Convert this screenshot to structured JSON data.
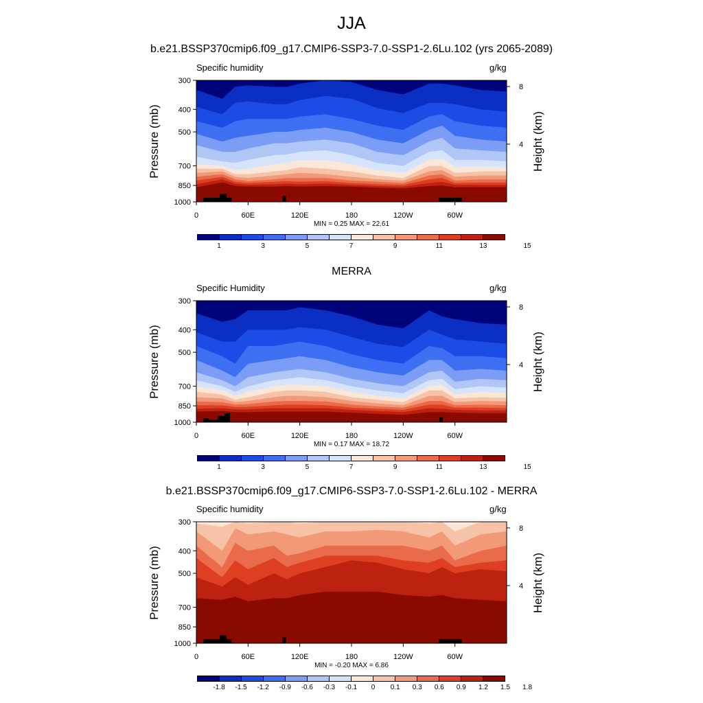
{
  "main_title": "JJA",
  "colors": {
    "seq": [
      "#00037a",
      "#0b2fc2",
      "#1d4be6",
      "#3e6ff2",
      "#7c9df5",
      "#b0c6f7",
      "#d6e4fb",
      "#fbe7d8",
      "#f7c3a8",
      "#f29a78",
      "#ea6b4c",
      "#de3f22",
      "#bd2210",
      "#8b0a00"
    ],
    "diff": [
      "#00037a",
      "#0b2fc2",
      "#1d4be6",
      "#3e6ff2",
      "#7c9df5",
      "#b0c6f7",
      "#d6e4fb",
      "#fbe7d8",
      "#f7c3a8",
      "#f29a78",
      "#ea6b4c",
      "#de3f22",
      "#bd2210",
      "#8b0a00"
    ]
  },
  "chart_data": [
    {
      "type": "heatmap",
      "title": "b.e21.BSSP370cmip6.f09_g17.CMIP6-SSP3-7.0-SSP1-2.6Lu.102 (yrs 2065-2089)",
      "left_label": "Specific humidity",
      "units": "g/kg",
      "xlabel": "",
      "ylabel": "Pressure (mb)",
      "y2label": "Height (km)",
      "x_ticks": [
        "0",
        "60E",
        "120E",
        "180",
        "120W",
        "60W"
      ],
      "x_tick_values": [
        0,
        60,
        120,
        180,
        240,
        300
      ],
      "xlim": [
        0,
        360
      ],
      "y_ticks": [
        "300",
        "400",
        "500",
        "700",
        "850",
        "1000"
      ],
      "y_tick_values": [
        300,
        400,
        500,
        700,
        850,
        1000
      ],
      "ylim": [
        1000,
        300
      ],
      "y2_ticks": [
        "8",
        "4"
      ],
      "y2_tick_values": [
        8,
        4
      ],
      "min_max_text": "MIN =   0.25  MAX =  22.61",
      "colorbar_labels": [
        "1",
        "3",
        "5",
        "7",
        "9",
        "11",
        "13",
        "15"
      ],
      "levels": [
        0,
        1,
        2,
        3,
        4,
        5,
        6,
        7,
        8,
        9,
        10,
        11,
        12,
        13,
        14,
        15
      ],
      "field": "seq",
      "lon": [
        0,
        30,
        45,
        60,
        90,
        105,
        120,
        150,
        180,
        210,
        240,
        270,
        285,
        300,
        330,
        360
      ],
      "tops": [
        [
          330,
          360,
          320,
          315,
          320,
          320,
          310,
          300,
          305,
          330,
          345,
          310,
          310,
          315,
          330,
          335
        ],
        [
          390,
          420,
          375,
          370,
          380,
          380,
          365,
          350,
          360,
          395,
          415,
          375,
          375,
          380,
          400,
          410
        ],
        [
          450,
          480,
          450,
          440,
          440,
          440,
          430,
          420,
          440,
          470,
          490,
          430,
          420,
          450,
          470,
          480
        ],
        [
          510,
          550,
          530,
          520,
          500,
          500,
          490,
          480,
          500,
          540,
          560,
          490,
          470,
          520,
          540,
          550
        ],
        [
          570,
          610,
          610,
          590,
          560,
          560,
          550,
          540,
          560,
          610,
          630,
          550,
          530,
          590,
          600,
          610
        ],
        [
          640,
          670,
          680,
          660,
          630,
          625,
          610,
          600,
          630,
          680,
          700,
          610,
          600,
          660,
          660,
          670
        ],
        [
          690,
          700,
          730,
          720,
          690,
          680,
          660,
          660,
          690,
          730,
          750,
          660,
          650,
          710,
          705,
          710
        ],
        [
          720,
          720,
          760,
          760,
          740,
          730,
          710,
          720,
          740,
          770,
          790,
          700,
          700,
          750,
          740,
          740
        ],
        [
          750,
          740,
          780,
          790,
          770,
          760,
          750,
          760,
          780,
          800,
          810,
          740,
          730,
          780,
          770,
          770
        ],
        [
          780,
          760,
          800,
          815,
          800,
          790,
          790,
          790,
          810,
          820,
          830,
          770,
          760,
          810,
          800,
          800
        ],
        [
          810,
          780,
          820,
          830,
          820,
          815,
          820,
          815,
          830,
          840,
          845,
          800,
          790,
          830,
          825,
          825
        ],
        [
          840,
          800,
          835,
          845,
          840,
          835,
          840,
          835,
          845,
          855,
          860,
          830,
          820,
          845,
          845,
          845
        ],
        [
          865,
          825,
          855,
          860,
          860,
          855,
          860,
          855,
          860,
          870,
          875,
          855,
          850,
          865,
          865,
          865
        ]
      ],
      "base_color_index": 0,
      "topo": [
        {
          "lon0": 8,
          "lon1": 17,
          "p": 960
        },
        {
          "lon0": 17,
          "lon1": 27,
          "p": 960
        },
        {
          "lon0": 27,
          "lon1": 35,
          "p": 925
        },
        {
          "lon0": 35,
          "lon1": 41,
          "p": 960
        },
        {
          "lon0": 100,
          "lon1": 104,
          "p": 945
        },
        {
          "lon0": 281,
          "lon1": 308,
          "p": 960
        }
      ]
    },
    {
      "type": "heatmap",
      "title": "MERRA",
      "left_label": "Specific Humidity",
      "units": "g/kg",
      "xlabel": "",
      "ylabel": "Pressure (mb)",
      "y2label": "Height (km)",
      "x_ticks": [
        "0",
        "60E",
        "120E",
        "180",
        "120W",
        "60W"
      ],
      "x_tick_values": [
        0,
        60,
        120,
        180,
        240,
        300
      ],
      "xlim": [
        0,
        360
      ],
      "y_ticks": [
        "300",
        "400",
        "500",
        "700",
        "850",
        "1000"
      ],
      "y_tick_values": [
        300,
        400,
        500,
        700,
        850,
        1000
      ],
      "ylim": [
        1000,
        300
      ],
      "y2_ticks": [
        "8",
        "4"
      ],
      "y2_tick_values": [
        8,
        4
      ],
      "min_max_text": "MIN =   0.17  MAX =  18.72",
      "colorbar_labels": [
        "1",
        "3",
        "5",
        "7",
        "9",
        "11",
        "13",
        "15"
      ],
      "levels": [
        0,
        1,
        2,
        3,
        4,
        5,
        6,
        7,
        8,
        9,
        10,
        11,
        12,
        13,
        14,
        15
      ],
      "field": "seq",
      "lon": [
        0,
        30,
        45,
        60,
        90,
        105,
        120,
        150,
        180,
        210,
        240,
        270,
        285,
        300,
        330,
        360
      ],
      "tops": [
        [
          340,
          370,
          360,
          330,
          330,
          330,
          320,
          330,
          350,
          380,
          395,
          330,
          350,
          360,
          375,
          380
        ],
        [
          410,
          450,
          450,
          400,
          400,
          400,
          390,
          400,
          430,
          460,
          475,
          400,
          420,
          440,
          450,
          460
        ],
        [
          470,
          520,
          560,
          470,
          470,
          460,
          450,
          470,
          510,
          540,
          560,
          470,
          480,
          520,
          520,
          530
        ],
        [
          540,
          600,
          640,
          560,
          540,
          530,
          520,
          540,
          580,
          610,
          630,
          540,
          540,
          600,
          590,
          600
        ],
        [
          610,
          660,
          700,
          640,
          610,
          600,
          590,
          610,
          650,
          680,
          700,
          610,
          600,
          670,
          650,
          660
        ],
        [
          660,
          700,
          740,
          700,
          660,
          650,
          640,
          660,
          700,
          730,
          750,
          660,
          650,
          720,
          700,
          710
        ],
        [
          700,
          730,
          770,
          740,
          700,
          690,
          690,
          700,
          740,
          770,
          790,
          700,
          690,
          760,
          740,
          750
        ],
        [
          740,
          760,
          800,
          780,
          740,
          730,
          730,
          740,
          780,
          800,
          820,
          730,
          730,
          790,
          780,
          785
        ],
        [
          780,
          790,
          820,
          810,
          780,
          770,
          770,
          780,
          810,
          830,
          845,
          770,
          770,
          820,
          810,
          815
        ],
        [
          815,
          820,
          840,
          835,
          815,
          810,
          810,
          815,
          840,
          855,
          865,
          810,
          810,
          845,
          840,
          845
        ],
        [
          845,
          845,
          860,
          860,
          845,
          840,
          840,
          845,
          865,
          875,
          885,
          840,
          840,
          865,
          865,
          870
        ],
        [
          875,
          870,
          880,
          880,
          870,
          870,
          870,
          870,
          885,
          895,
          905,
          870,
          875,
          885,
          890,
          890
        ],
        [
          900,
          895,
          905,
          905,
          900,
          900,
          900,
          900,
          910,
          920,
          930,
          905,
          905,
          910,
          915,
          915
        ]
      ],
      "base_color_index": 0,
      "topo": [
        {
          "lon0": 8,
          "lon1": 14,
          "p": 960
        },
        {
          "lon0": 14,
          "lon1": 25,
          "p": 975
        },
        {
          "lon0": 25,
          "lon1": 33,
          "p": 940
        },
        {
          "lon0": 33,
          "lon1": 39,
          "p": 915
        },
        {
          "lon0": 282,
          "lon1": 286,
          "p": 955
        }
      ]
    },
    {
      "type": "heatmap",
      "title": "b.e21.BSSP370cmip6.f09_g17.CMIP6-SSP3-7.0-SSP1-2.6Lu.102 - MERRA",
      "left_label": "Specific humidity",
      "units": "g/kg",
      "xlabel": "",
      "ylabel": "Pressure (mb)",
      "y2label": "Height (km)",
      "x_ticks": [
        "0",
        "60E",
        "120E",
        "180",
        "120W",
        "60W"
      ],
      "x_tick_values": [
        0,
        60,
        120,
        180,
        240,
        300
      ],
      "xlim": [
        0,
        360
      ],
      "y_ticks": [
        "300",
        "400",
        "500",
        "700",
        "850",
        "1000"
      ],
      "y_tick_values": [
        300,
        400,
        500,
        700,
        850,
        1000
      ],
      "ylim": [
        1000,
        300
      ],
      "y2_ticks": [
        "8",
        "4"
      ],
      "y2_tick_values": [
        8,
        4
      ],
      "min_max_text": "MIN =  -0.20  MAX =   6.86",
      "colorbar_labels": [
        "-1.8",
        "-1.5",
        "-1.2",
        "-0.9",
        "-0.6",
        "-0.3",
        "-0.1",
        "0",
        "0.1",
        "0.3",
        "0.6",
        "0.9",
        "1.2",
        "1.5",
        "1.8"
      ],
      "levels": [
        -1.8,
        -1.5,
        -1.2,
        -0.9,
        -0.6,
        -0.3,
        -0.1,
        0,
        0.1,
        0.3,
        0.6,
        0.9,
        1.2,
        1.5,
        1.8
      ],
      "field": "diff",
      "lon": [
        0,
        30,
        45,
        60,
        90,
        105,
        120,
        150,
        180,
        210,
        240,
        270,
        285,
        300,
        330,
        360
      ],
      "tops": [
        [
          305,
          315,
          300,
          305,
          300,
          300,
          305,
          300,
          300,
          300,
          300,
          305,
          300,
          330,
          300,
          300
        ],
        [
          330,
          400,
          320,
          340,
          330,
          340,
          350,
          330,
          330,
          325,
          330,
          350,
          330,
          380,
          340,
          330
        ],
        [
          380,
          470,
          370,
          400,
          380,
          420,
          410,
          380,
          380,
          380,
          380,
          400,
          380,
          440,
          400,
          380
        ],
        [
          430,
          520,
          440,
          480,
          430,
          470,
          450,
          420,
          420,
          420,
          440,
          450,
          430,
          470,
          450,
          440
        ],
        [
          520,
          570,
          520,
          560,
          500,
          530,
          500,
          470,
          440,
          450,
          480,
          500,
          470,
          500,
          480,
          490
        ],
        [
          640,
          650,
          630,
          660,
          640,
          640,
          620,
          600,
          600,
          600,
          620,
          630,
          620,
          640,
          650,
          660
        ]
      ],
      "base_color_index": 7,
      "topo": [
        {
          "lon0": 8,
          "lon1": 27,
          "p": 960
        },
        {
          "lon0": 27,
          "lon1": 35,
          "p": 925
        },
        {
          "lon0": 35,
          "lon1": 41,
          "p": 960
        },
        {
          "lon0": 100,
          "lon1": 104,
          "p": 945
        },
        {
          "lon0": 281,
          "lon1": 308,
          "p": 960
        }
      ]
    }
  ]
}
